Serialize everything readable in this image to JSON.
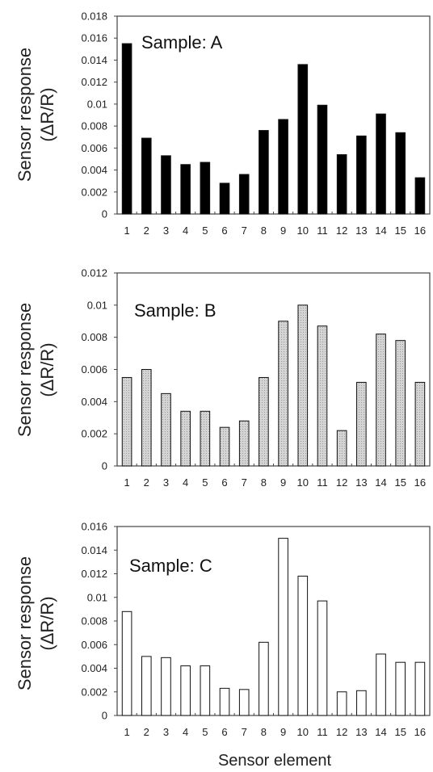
{
  "figure": {
    "xlabel": "Sensor element"
  },
  "colors": {
    "dark": "#000000",
    "gray": "#c8c8c8",
    "white": "#ffffff",
    "axis": "#444444"
  },
  "chart_data": [
    {
      "type": "bar",
      "annotation": "Sample: A",
      "ylabel_line1": "Sensor response",
      "ylabel_line2": "(ΔR/R)",
      "categories": [
        "1",
        "2",
        "3",
        "4",
        "5",
        "6",
        "7",
        "8",
        "9",
        "10",
        "11",
        "12",
        "13",
        "14",
        "15",
        "16"
      ],
      "values": [
        0.0155,
        0.0069,
        0.0053,
        0.0045,
        0.0047,
        0.0028,
        0.0036,
        0.0076,
        0.0086,
        0.0136,
        0.0099,
        0.0054,
        0.0071,
        0.0091,
        0.0074,
        0.0033
      ],
      "ylim": [
        0,
        0.018
      ],
      "yticks": [
        "0",
        "0.002",
        "0.004",
        "0.006",
        "0.008",
        "0.01",
        "0.012",
        "0.014",
        "0.016",
        "0.018"
      ],
      "bar_style": "dark"
    },
    {
      "type": "bar",
      "annotation": "Sample: B",
      "ylabel_line1": "Sensor response",
      "ylabel_line2": "(ΔR/R)",
      "categories": [
        "1",
        "2",
        "3",
        "4",
        "5",
        "6",
        "7",
        "8",
        "9",
        "10",
        "11",
        "12",
        "13",
        "14",
        "15",
        "16"
      ],
      "values": [
        0.0055,
        0.006,
        0.0045,
        0.0034,
        0.0034,
        0.0024,
        0.0028,
        0.0055,
        0.009,
        0.01,
        0.0087,
        0.0022,
        0.0052,
        0.0082,
        0.0078,
        0.0052
      ],
      "ylim": [
        0,
        0.012
      ],
      "yticks": [
        "0",
        "0.002",
        "0.004",
        "0.006",
        "0.008",
        "0.01",
        "0.012"
      ],
      "bar_style": "gray"
    },
    {
      "type": "bar",
      "annotation": "Sample: C",
      "ylabel_line1": "Sensor response",
      "ylabel_line2": "(ΔR/R)",
      "categories": [
        "1",
        "2",
        "3",
        "4",
        "5",
        "6",
        "7",
        "8",
        "9",
        "10",
        "11",
        "12",
        "13",
        "14",
        "15",
        "16"
      ],
      "values": [
        0.0088,
        0.005,
        0.0049,
        0.0042,
        0.0042,
        0.0023,
        0.0022,
        0.0062,
        0.015,
        0.0118,
        0.0097,
        0.002,
        0.0021,
        0.0052,
        0.0045,
        0.0045
      ],
      "ylim": [
        0,
        0.016
      ],
      "yticks": [
        "0",
        "0.002",
        "0.004",
        "0.006",
        "0.008",
        "0.01",
        "0.012",
        "0.014",
        "0.016"
      ],
      "bar_style": "white"
    }
  ]
}
